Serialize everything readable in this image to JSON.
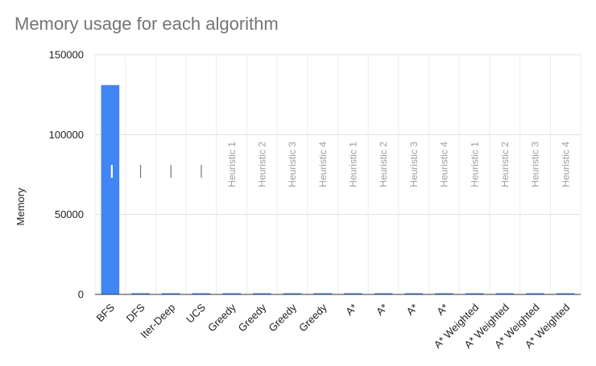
{
  "chart_data": {
    "type": "bar",
    "title": "Memory usage for each algorithm",
    "xlabel": "",
    "ylabel": "Memory",
    "ylim": [
      0,
      150000
    ],
    "yticks": [
      0,
      50000,
      100000,
      150000
    ],
    "ytick_labels": [
      "0",
      "50000",
      "100000",
      "150000"
    ],
    "grid": true,
    "legend": "none",
    "color": "#4285f4",
    "categories": [
      "BFS",
      "DFS",
      "Iter-Deep",
      "UCS",
      "Greedy",
      "Greedy",
      "Greedy",
      "Greedy",
      "A*",
      "A*",
      "A*",
      "A*",
      "A* Weighted",
      "A* Weighted",
      "A* Weighted",
      "A* Weighted"
    ],
    "annotations": [
      "",
      "",
      "",
      "",
      "Heuristic 1",
      "Heuristic 2",
      "Heuristic 3",
      "Heuristic 4",
      "Heuristic 1",
      "Heuristic 2",
      "Heuristic 3",
      "Heuristic 4",
      "Heuristic 1",
      "Heuristic 2",
      "Heuristic 3",
      "Heuristic 4"
    ],
    "values": [
      131000,
      600,
      600,
      600,
      600,
      600,
      600,
      600,
      600,
      600,
      600,
      600,
      600,
      600,
      600,
      600
    ]
  }
}
